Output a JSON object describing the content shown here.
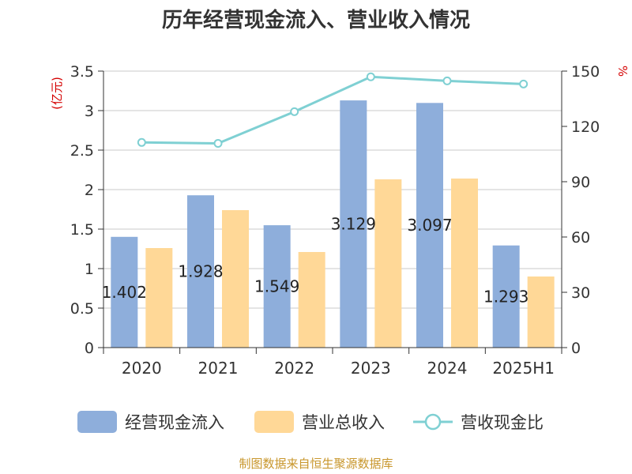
{
  "chart_data": {
    "type": "bar",
    "title": "历年经营现金流入、营业收入情况",
    "categories": [
      "2020",
      "2021",
      "2022",
      "2023",
      "2024",
      "2025H1"
    ],
    "left_axis": {
      "unit": "(亿元)",
      "ylim": [
        0,
        3.5
      ],
      "ticks": [
        "0",
        "0.5",
        "1",
        "1.5",
        "2",
        "2.5",
        "3",
        "3.5"
      ],
      "tick_values": [
        0,
        0.5,
        1,
        1.5,
        2,
        2.5,
        3,
        3.5
      ]
    },
    "right_axis": {
      "unit": "%",
      "ylim": [
        0,
        150
      ],
      "ticks": [
        "0",
        "30",
        "60",
        "90",
        "120",
        "150"
      ],
      "tick_values": [
        0,
        30,
        60,
        90,
        120,
        150
      ]
    },
    "series": [
      {
        "name": "经营现金流入",
        "type": "bar",
        "axis": "left",
        "color": "#8eaedb",
        "values": [
          1.402,
          1.928,
          1.549,
          3.129,
          3.097,
          1.293
        ],
        "labels": [
          "1.402",
          "1.928",
          "1.549",
          "3.129",
          "3.097",
          "1.293"
        ]
      },
      {
        "name": "营业总收入",
        "type": "bar",
        "axis": "left",
        "color": "#ffd897",
        "values": [
          1.26,
          1.74,
          1.21,
          2.13,
          2.14,
          0.9
        ]
      },
      {
        "name": "营收现金比",
        "type": "line",
        "axis": "right",
        "color": "#7fd0d3",
        "values": [
          111.3,
          110.8,
          128.0,
          146.9,
          144.7,
          143.0
        ]
      }
    ],
    "grid": true,
    "legend_position": "bottom"
  },
  "footer": {
    "source": "制图数据来自恒生聚源数据库"
  }
}
